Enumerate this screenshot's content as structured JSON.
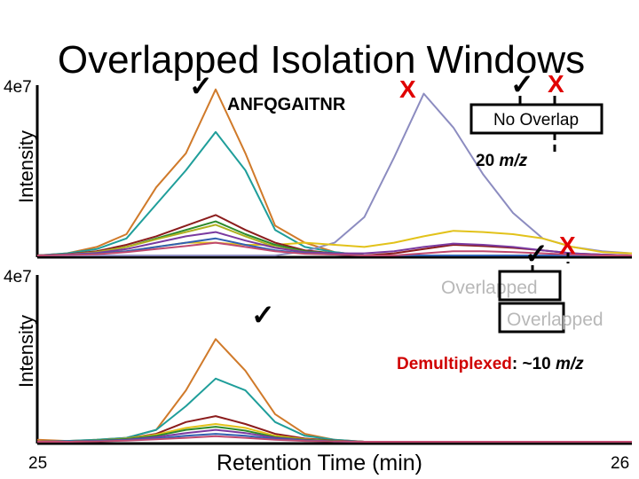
{
  "title": "Overlapped Isolation Windows",
  "peptide_label": "ANFQGAITNR",
  "marks": {
    "check": "✓",
    "cross": "X"
  },
  "colors": {
    "check": "#000000",
    "cross": "#e00000",
    "demux": "#d00000"
  },
  "top_box": {
    "label": "No Overlap",
    "width_label": "20 m/z",
    "width_value": "20 ",
    "width_unit": "m/z"
  },
  "bottom_box": {
    "label_a": "Overlapped",
    "label_b": "Overlapped",
    "demux_word": "Demultiplexed",
    "demux_rest": ": ~10 ",
    "demux_unit": "m/z"
  },
  "chart_data": [
    {
      "type": "line",
      "ylabel": "Intensity",
      "ytick": "4e7",
      "xlim": [
        25,
        26
      ],
      "ylim": [
        0,
        4
      ],
      "x": [
        25.0,
        25.05,
        25.1,
        25.15,
        25.2,
        25.25,
        25.3,
        25.35,
        25.4,
        25.45,
        25.5,
        25.55,
        25.6,
        25.65,
        25.7,
        25.75,
        25.8,
        25.85,
        25.9,
        25.95,
        26.0
      ],
      "series": [
        {
          "color": "#d07a2a",
          "values": [
            0,
            0.05,
            0.2,
            0.5,
            1.6,
            2.4,
            3.9,
            2.4,
            0.7,
            0.3,
            0.08,
            0,
            0,
            0,
            0,
            0,
            0,
            0,
            0,
            0,
            0
          ]
        },
        {
          "color": "#1f9e9a",
          "values": [
            0,
            0.05,
            0.15,
            0.4,
            1.2,
            2.0,
            2.9,
            2.0,
            0.6,
            0.2,
            0.08,
            0,
            0,
            0,
            0,
            0,
            0,
            0,
            0,
            0,
            0
          ]
        },
        {
          "color": "#8c8cc0",
          "values": [
            0,
            0,
            0,
            0,
            0,
            0,
            0,
            0,
            0,
            0.1,
            0.3,
            0.9,
            2.3,
            3.8,
            3.0,
            1.9,
            1.0,
            0.4,
            0.2,
            0.1,
            0.05
          ]
        },
        {
          "color": "#e2c21a",
          "values": [
            0,
            0.02,
            0.05,
            0.1,
            0.2,
            0.3,
            0.3,
            0.25,
            0.25,
            0.3,
            0.25,
            0.2,
            0.3,
            0.45,
            0.58,
            0.55,
            0.5,
            0.4,
            0.2,
            0.08,
            0.05
          ]
        },
        {
          "color": "#8b1c1c",
          "values": [
            0,
            0.03,
            0.1,
            0.25,
            0.45,
            0.7,
            0.95,
            0.6,
            0.3,
            0.12,
            0.05,
            0,
            0.05,
            0.15,
            0.25,
            0.22,
            0.18,
            0.12,
            0.05,
            0.02,
            0
          ]
        },
        {
          "color": "#2d8a2d",
          "values": [
            0,
            0.02,
            0.08,
            0.2,
            0.4,
            0.6,
            0.8,
            0.5,
            0.25,
            0.1,
            0.05,
            0,
            0,
            0,
            0,
            0,
            0,
            0,
            0,
            0,
            0
          ]
        },
        {
          "color": "#b0b020",
          "values": [
            0,
            0.02,
            0.08,
            0.2,
            0.38,
            0.55,
            0.72,
            0.45,
            0.2,
            0.08,
            0.03,
            0,
            0,
            0,
            0,
            0,
            0,
            0,
            0,
            0,
            0
          ]
        },
        {
          "color": "#7a3aa0",
          "values": [
            0,
            0.02,
            0.06,
            0.15,
            0.3,
            0.45,
            0.55,
            0.35,
            0.18,
            0.08,
            0.05,
            0.05,
            0.1,
            0.2,
            0.28,
            0.25,
            0.2,
            0.12,
            0.05,
            0.02,
            0
          ]
        },
        {
          "color": "#3060b0",
          "values": [
            0,
            0.01,
            0.04,
            0.1,
            0.2,
            0.3,
            0.4,
            0.25,
            0.12,
            0.05,
            0.02,
            0,
            0,
            0,
            0,
            0,
            0,
            0,
            0,
            0,
            0
          ]
        },
        {
          "color": "#c04a70",
          "values": [
            0,
            0.01,
            0.03,
            0.08,
            0.15,
            0.22,
            0.3,
            0.2,
            0.1,
            0.04,
            0.02,
            0,
            0,
            0.05,
            0.1,
            0.1,
            0.08,
            0.05,
            0.02,
            0,
            0
          ]
        }
      ]
    },
    {
      "type": "line",
      "ylabel": "Intensity",
      "ytick": "4e7",
      "xlim": [
        25,
        26
      ],
      "ylim": [
        0,
        4
      ],
      "xlabel": "Retention Time (min)",
      "xtick_labels": [
        "25",
        "26"
      ],
      "x": [
        25.0,
        25.05,
        25.1,
        25.15,
        25.2,
        25.25,
        25.3,
        25.35,
        25.4,
        25.45,
        25.5,
        25.55,
        25.6,
        25.65,
        25.7,
        25.75,
        25.8,
        25.85,
        25.9,
        25.95,
        26.0
      ],
      "series": [
        {
          "color": "#d07a2a",
          "values": [
            0.05,
            0.02,
            0.05,
            0.1,
            0.3,
            1.3,
            2.6,
            1.8,
            0.7,
            0.2,
            0.05,
            0,
            0,
            0,
            0,
            0,
            0,
            0,
            0,
            0,
            0
          ]
        },
        {
          "color": "#1f9e9a",
          "values": [
            0,
            0.02,
            0.05,
            0.1,
            0.3,
            0.9,
            1.6,
            1.3,
            0.5,
            0.15,
            0.05,
            0,
            0,
            0,
            0,
            0,
            0,
            0,
            0,
            0,
            0
          ]
        },
        {
          "color": "#8b1c1c",
          "values": [
            0,
            0.01,
            0.03,
            0.08,
            0.2,
            0.5,
            0.65,
            0.45,
            0.2,
            0.08,
            0.03,
            0,
            0,
            0,
            0,
            0,
            0,
            0,
            0,
            0,
            0
          ]
        },
        {
          "color": "#e2c21a",
          "values": [
            0,
            0.01,
            0.03,
            0.08,
            0.18,
            0.35,
            0.45,
            0.35,
            0.15,
            0.06,
            0.02,
            0,
            0,
            0,
            0,
            0,
            0,
            0,
            0,
            0,
            0
          ]
        },
        {
          "color": "#2d8a2d",
          "values": [
            0,
            0.01,
            0.03,
            0.07,
            0.15,
            0.3,
            0.38,
            0.28,
            0.12,
            0.05,
            0.02,
            0,
            0,
            0,
            0,
            0,
            0,
            0,
            0,
            0,
            0
          ]
        },
        {
          "color": "#7a3aa0",
          "values": [
            0,
            0.01,
            0.02,
            0.05,
            0.12,
            0.22,
            0.3,
            0.22,
            0.1,
            0.04,
            0.01,
            0,
            0,
            0,
            0,
            0,
            0,
            0,
            0,
            0,
            0
          ]
        },
        {
          "color": "#3060b0",
          "values": [
            0,
            0.01,
            0.02,
            0.04,
            0.08,
            0.15,
            0.2,
            0.15,
            0.07,
            0.03,
            0.01,
            0,
            0,
            0,
            0,
            0,
            0,
            0,
            0,
            0,
            0
          ]
        },
        {
          "color": "#c04a70",
          "values": [
            0,
            0,
            0.01,
            0.03,
            0.06,
            0.1,
            0.14,
            0.1,
            0.05,
            0.02,
            0.01,
            0,
            0,
            0,
            0,
            0,
            0,
            0,
            0,
            0,
            0
          ]
        }
      ]
    }
  ]
}
